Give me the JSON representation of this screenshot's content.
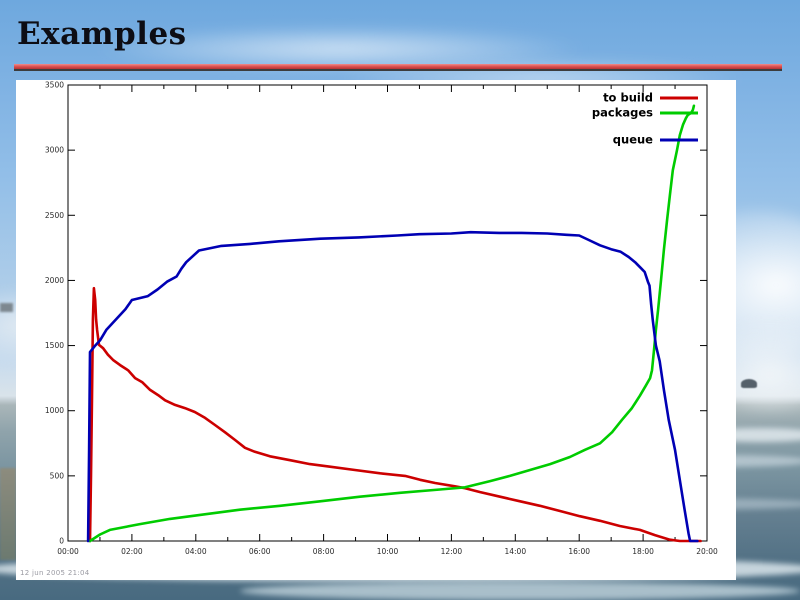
{
  "slide": {
    "title": "Examples"
  },
  "colors": {
    "separator_red": "#c83a3a",
    "separator_dark": "#3c3c3c",
    "title_text": "#0d0d14",
    "panel_background": "#ffffff",
    "axis": "#000000",
    "series_to_build": "#cc0000",
    "series_packages": "#00cc00",
    "series_queue": "#0000b4"
  },
  "chart": {
    "footnote": "12 jun 2005  21:04"
  },
  "chart_data": {
    "type": "line",
    "title": "",
    "xlabel": "",
    "ylabel": "",
    "grid": false,
    "legend_position": "top-right",
    "xlim": [
      0,
      20
    ],
    "ylim": [
      0,
      3500
    ],
    "x_tick_labels": [
      "00:00",
      "02:00",
      "04:00",
      "06:00",
      "08:00",
      "10:00",
      "12:00",
      "14:00",
      "16:00",
      "18:00",
      "20:00"
    ],
    "y_ticks": [
      0,
      500,
      1000,
      1500,
      2000,
      2500,
      3000,
      3500
    ],
    "series": [
      {
        "name": "to build",
        "color": "#cc0000",
        "points": [
          [
            0.69,
            0
          ],
          [
            0.72,
            500
          ],
          [
            0.75,
            1100
          ],
          [
            0.78,
            1700
          ],
          [
            0.81,
            1940
          ],
          [
            0.85,
            1850
          ],
          [
            0.88,
            1700
          ],
          [
            0.91,
            1620
          ],
          [
            0.97,
            1505
          ],
          [
            1.1,
            1480
          ],
          [
            1.25,
            1430
          ],
          [
            1.41,
            1390
          ],
          [
            1.63,
            1350
          ],
          [
            1.88,
            1310
          ],
          [
            2.1,
            1250
          ],
          [
            2.32,
            1220
          ],
          [
            2.57,
            1160
          ],
          [
            2.82,
            1120
          ],
          [
            3.04,
            1080
          ],
          [
            3.35,
            1045
          ],
          [
            3.66,
            1020
          ],
          [
            3.97,
            990
          ],
          [
            4.29,
            945
          ],
          [
            4.6,
            890
          ],
          [
            4.91,
            835
          ],
          [
            5.23,
            775
          ],
          [
            5.54,
            715
          ],
          [
            5.85,
            685
          ],
          [
            6.32,
            650
          ],
          [
            6.95,
            620
          ],
          [
            7.57,
            590
          ],
          [
            8.2,
            570
          ],
          [
            8.98,
            545
          ],
          [
            9.77,
            520
          ],
          [
            10.55,
            500
          ],
          [
            11.02,
            470
          ],
          [
            11.49,
            445
          ],
          [
            12.11,
            420
          ],
          [
            12.43,
            405
          ],
          [
            12.9,
            375
          ],
          [
            13.52,
            340
          ],
          [
            14.15,
            305
          ],
          [
            14.77,
            270
          ],
          [
            15.4,
            230
          ],
          [
            16.02,
            190
          ],
          [
            16.65,
            155
          ],
          [
            17.27,
            115
          ],
          [
            17.9,
            85
          ],
          [
            18.37,
            45
          ],
          [
            18.84,
            10
          ],
          [
            19.15,
            0
          ],
          [
            19.8,
            0
          ]
        ]
      },
      {
        "name": "packages",
        "color": "#00cc00",
        "points": [
          [
            0.69,
            0
          ],
          [
            1.0,
            50
          ],
          [
            1.31,
            85
          ],
          [
            2.25,
            130
          ],
          [
            3.19,
            170
          ],
          [
            4.13,
            200
          ],
          [
            5.38,
            240
          ],
          [
            6.64,
            270
          ],
          [
            7.89,
            305
          ],
          [
            9.14,
            340
          ],
          [
            10.39,
            370
          ],
          [
            11.64,
            395
          ],
          [
            12.43,
            412
          ],
          [
            13.21,
            460
          ],
          [
            13.83,
            500
          ],
          [
            14.46,
            545
          ],
          [
            15.09,
            590
          ],
          [
            15.71,
            645
          ],
          [
            16.18,
            700
          ],
          [
            16.65,
            750
          ],
          [
            17.03,
            835
          ],
          [
            17.34,
            930
          ],
          [
            17.65,
            1020
          ],
          [
            17.9,
            1115
          ],
          [
            18.09,
            1195
          ],
          [
            18.22,
            1250
          ],
          [
            18.28,
            1310
          ],
          [
            18.34,
            1465
          ],
          [
            18.4,
            1620
          ],
          [
            18.47,
            1775
          ],
          [
            18.56,
            2000
          ],
          [
            18.65,
            2235
          ],
          [
            18.75,
            2465
          ],
          [
            18.84,
            2655
          ],
          [
            18.93,
            2845
          ],
          [
            19.06,
            3000
          ],
          [
            19.15,
            3115
          ],
          [
            19.25,
            3195
          ],
          [
            19.34,
            3245
          ],
          [
            19.4,
            3270
          ],
          [
            19.5,
            3285
          ],
          [
            19.56,
            3310
          ],
          [
            19.59,
            3340
          ]
        ]
      },
      {
        "name": "queue",
        "color": "#0000b4",
        "points": [
          [
            0.63,
            0
          ],
          [
            0.66,
            700
          ],
          [
            0.69,
            1450
          ],
          [
            0.85,
            1500
          ],
          [
            1.0,
            1540
          ],
          [
            1.2,
            1620
          ],
          [
            1.5,
            1700
          ],
          [
            1.8,
            1780
          ],
          [
            2.0,
            1850
          ],
          [
            2.5,
            1880
          ],
          [
            2.8,
            1930
          ],
          [
            3.1,
            1990
          ],
          [
            3.4,
            2030
          ],
          [
            3.55,
            2090
          ],
          [
            3.7,
            2140
          ],
          [
            4.1,
            2230
          ],
          [
            4.5,
            2250
          ],
          [
            4.8,
            2265
          ],
          [
            5.7,
            2280
          ],
          [
            6.6,
            2300
          ],
          [
            7.9,
            2320
          ],
          [
            9.1,
            2330
          ],
          [
            10.3,
            2345
          ],
          [
            11.0,
            2355
          ],
          [
            12.0,
            2360
          ],
          [
            12.6,
            2370
          ],
          [
            13.5,
            2365
          ],
          [
            14.2,
            2365
          ],
          [
            15.0,
            2360
          ],
          [
            15.6,
            2350
          ],
          [
            16.0,
            2345
          ],
          [
            16.3,
            2310
          ],
          [
            16.65,
            2270
          ],
          [
            17.0,
            2240
          ],
          [
            17.3,
            2220
          ],
          [
            17.55,
            2180
          ],
          [
            17.75,
            2140
          ],
          [
            17.95,
            2090
          ],
          [
            18.05,
            2065
          ],
          [
            18.15,
            1990
          ],
          [
            18.2,
            1960
          ],
          [
            18.25,
            1820
          ],
          [
            18.3,
            1700
          ],
          [
            18.4,
            1500
          ],
          [
            18.52,
            1380
          ],
          [
            18.65,
            1160
          ],
          [
            18.8,
            930
          ],
          [
            19.0,
            700
          ],
          [
            19.15,
            470
          ],
          [
            19.3,
            240
          ],
          [
            19.42,
            60
          ],
          [
            19.47,
            0
          ],
          [
            19.7,
            0
          ]
        ]
      }
    ]
  }
}
